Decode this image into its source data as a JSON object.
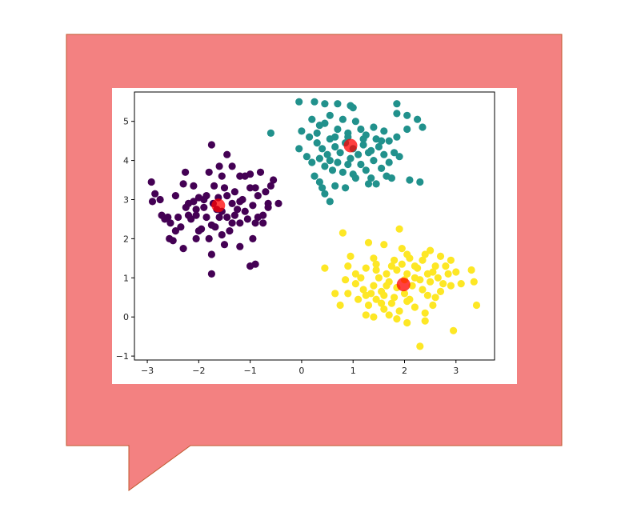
{
  "colors": {
    "bubble_fill": "#f38181",
    "bubble_stroke": "#c0592f",
    "cluster_colors": [
      "#440154",
      "#21918c",
      "#fde725"
    ],
    "centroid": "#ff0000"
  },
  "chart_data": {
    "type": "scatter",
    "title": "",
    "xlabel": "",
    "ylabel": "",
    "xlim": [
      -3.25,
      3.75
    ],
    "ylim": [
      -1.1,
      5.75
    ],
    "xticks": [
      -3,
      -2,
      -1,
      0,
      1,
      2,
      3
    ],
    "yticks": [
      -1,
      0,
      1,
      2,
      3,
      4,
      5
    ],
    "grid": false,
    "legend": "none",
    "series": [
      {
        "color": "#440154",
        "points": [
          [
            -2.92,
            3.45
          ],
          [
            -2.85,
            3.15
          ],
          [
            -2.9,
            2.95
          ],
          [
            -2.75,
            3.0
          ],
          [
            -2.72,
            2.6
          ],
          [
            -2.66,
            2.5
          ],
          [
            -2.55,
            2.4
          ],
          [
            -2.57,
            2.0
          ],
          [
            -2.45,
            3.1
          ],
          [
            -2.4,
            2.55
          ],
          [
            -2.35,
            2.3
          ],
          [
            -2.3,
            3.4
          ],
          [
            -2.26,
            3.7
          ],
          [
            -2.2,
            2.9
          ],
          [
            -2.15,
            2.5
          ],
          [
            -2.1,
            3.35
          ],
          [
            -2.05,
            2.75
          ],
          [
            -2.0,
            3.05
          ],
          [
            -1.95,
            2.25
          ],
          [
            -1.9,
            2.8
          ],
          [
            -1.85,
            2.55
          ],
          [
            -1.8,
            3.7
          ],
          [
            -1.75,
            4.4
          ],
          [
            -1.72,
            2.9
          ],
          [
            -1.68,
            2.3
          ],
          [
            -1.62,
            3.05
          ],
          [
            -1.55,
            2.7
          ],
          [
            -1.5,
            3.3
          ],
          [
            -1.45,
            2.55
          ],
          [
            -1.4,
            2.2
          ],
          [
            -1.35,
            2.9
          ],
          [
            -1.3,
            3.2
          ],
          [
            -1.25,
            2.75
          ],
          [
            -1.2,
            2.4
          ],
          [
            -1.15,
            3.0
          ],
          [
            -1.1,
            3.6
          ],
          [
            -1.05,
            2.5
          ],
          [
            -1.0,
            3.3
          ],
          [
            -0.95,
            2.85
          ],
          [
            -0.9,
            2.4
          ],
          [
            -0.85,
            3.1
          ],
          [
            -0.8,
            3.7
          ],
          [
            -0.75,
            2.6
          ],
          [
            -0.7,
            3.2
          ],
          [
            -0.65,
            2.9
          ],
          [
            -0.6,
            3.35
          ],
          [
            -0.55,
            3.5
          ],
          [
            -0.45,
            2.9
          ],
          [
            -0.9,
            1.35
          ],
          [
            -1.0,
            1.3
          ],
          [
            -1.2,
            1.8
          ],
          [
            -1.5,
            1.85
          ],
          [
            -1.75,
            1.6
          ],
          [
            -1.75,
            1.1
          ],
          [
            -1.45,
            4.15
          ],
          [
            -1.35,
            3.85
          ],
          [
            -1.9,
            3.0
          ],
          [
            -2.0,
            2.2
          ],
          [
            -2.45,
            2.2
          ],
          [
            -2.3,
            1.75
          ],
          [
            -2.5,
            1.95
          ],
          [
            -2.1,
            2.95
          ],
          [
            -1.6,
            2.55
          ],
          [
            -1.55,
            3.6
          ],
          [
            -1.0,
            3.65
          ],
          [
            -0.9,
            3.3
          ],
          [
            -1.2,
            2.95
          ],
          [
            -1.65,
            2.75
          ],
          [
            -2.2,
            2.6
          ],
          [
            -1.85,
            3.1
          ],
          [
            -1.3,
            2.6
          ],
          [
            -0.75,
            2.4
          ],
          [
            -2.6,
            2.55
          ],
          [
            -2.05,
            2.6
          ],
          [
            -1.7,
            3.35
          ],
          [
            -1.1,
            2.7
          ],
          [
            -0.95,
            2.0
          ],
          [
            -0.65,
            2.8
          ],
          [
            -1.8,
            2.0
          ],
          [
            -2.05,
            2.0
          ],
          [
            -1.45,
            3.1
          ],
          [
            -1.2,
            3.6
          ],
          [
            -1.6,
            3.85
          ],
          [
            -2.25,
            2.8
          ],
          [
            -1.35,
            2.4
          ],
          [
            -0.85,
            2.55
          ],
          [
            -1.75,
            2.35
          ],
          [
            -1.55,
            2.1
          ]
        ]
      },
      {
        "color": "#21918c",
        "points": [
          [
            -0.05,
            5.5
          ],
          [
            0.25,
            5.5
          ],
          [
            0.45,
            5.45
          ],
          [
            0.7,
            5.45
          ],
          [
            0.95,
            5.4
          ],
          [
            1.0,
            5.35
          ],
          [
            1.85,
            5.45
          ],
          [
            1.85,
            5.2
          ],
          [
            2.05,
            5.15
          ],
          [
            2.25,
            5.05
          ],
          [
            2.35,
            4.85
          ],
          [
            2.05,
            4.8
          ],
          [
            0.2,
            5.05
          ],
          [
            0.35,
            4.9
          ],
          [
            0.45,
            4.95
          ],
          [
            0.55,
            5.15
          ],
          [
            0.7,
            4.8
          ],
          [
            0.8,
            5.05
          ],
          [
            0.9,
            4.7
          ],
          [
            1.05,
            5.0
          ],
          [
            1.15,
            4.8
          ],
          [
            1.25,
            4.65
          ],
          [
            1.4,
            4.85
          ],
          [
            1.45,
            4.55
          ],
          [
            1.6,
            4.75
          ],
          [
            1.7,
            4.5
          ],
          [
            1.85,
            4.6
          ],
          [
            -0.6,
            4.7
          ],
          [
            0.0,
            4.75
          ],
          [
            0.15,
            4.6
          ],
          [
            0.3,
            4.45
          ],
          [
            0.4,
            4.3
          ],
          [
            0.55,
            4.55
          ],
          [
            0.65,
            4.35
          ],
          [
            0.75,
            4.2
          ],
          [
            0.85,
            4.45
          ],
          [
            1.0,
            4.3
          ],
          [
            1.1,
            4.15
          ],
          [
            1.2,
            4.4
          ],
          [
            1.3,
            4.2
          ],
          [
            1.4,
            4.0
          ],
          [
            1.5,
            4.35
          ],
          [
            1.6,
            4.15
          ],
          [
            1.7,
            3.95
          ],
          [
            1.8,
            4.2
          ],
          [
            1.9,
            4.1
          ],
          [
            -0.05,
            4.3
          ],
          [
            0.1,
            4.1
          ],
          [
            0.2,
            3.95
          ],
          [
            0.35,
            4.05
          ],
          [
            0.45,
            3.85
          ],
          [
            0.55,
            4.0
          ],
          [
            0.6,
            3.75
          ],
          [
            0.7,
            3.95
          ],
          [
            0.8,
            3.7
          ],
          [
            0.9,
            3.9
          ],
          [
            1.0,
            3.65
          ],
          [
            1.15,
            3.9
          ],
          [
            1.25,
            3.75
          ],
          [
            1.35,
            3.55
          ],
          [
            1.45,
            3.4
          ],
          [
            1.55,
            3.8
          ],
          [
            1.65,
            3.6
          ],
          [
            1.75,
            3.55
          ],
          [
            0.35,
            3.45
          ],
          [
            0.4,
            3.3
          ],
          [
            0.45,
            3.15
          ],
          [
            0.55,
            2.95
          ],
          [
            0.65,
            3.35
          ],
          [
            0.85,
            3.3
          ],
          [
            1.05,
            3.55
          ],
          [
            1.3,
            3.4
          ],
          [
            2.1,
            3.5
          ],
          [
            2.3,
            3.45
          ],
          [
            0.25,
            3.6
          ],
          [
            0.9,
            4.6
          ],
          [
            1.2,
            4.55
          ],
          [
            0.5,
            4.15
          ],
          [
            0.3,
            4.7
          ],
          [
            1.55,
            4.5
          ],
          [
            0.65,
            4.6
          ],
          [
            0.95,
            4.05
          ],
          [
            1.35,
            4.25
          ]
        ]
      },
      {
        "color": "#fde725",
        "points": [
          [
            0.8,
            2.15
          ],
          [
            1.9,
            2.25
          ],
          [
            1.3,
            1.9
          ],
          [
            1.6,
            1.85
          ],
          [
            1.95,
            1.75
          ],
          [
            2.5,
            1.7
          ],
          [
            2.7,
            1.55
          ],
          [
            1.4,
            1.5
          ],
          [
            1.8,
            1.45
          ],
          [
            2.1,
            1.5
          ],
          [
            2.35,
            1.45
          ],
          [
            2.6,
            1.3
          ],
          [
            2.9,
            1.45
          ],
          [
            3.0,
            1.15
          ],
          [
            3.3,
            1.2
          ],
          [
            3.35,
            0.9
          ],
          [
            0.45,
            1.25
          ],
          [
            0.9,
            1.3
          ],
          [
            1.05,
            1.1
          ],
          [
            1.25,
            1.25
          ],
          [
            1.45,
            1.2
          ],
          [
            1.65,
            1.1
          ],
          [
            1.85,
            1.2
          ],
          [
            2.05,
            1.1
          ],
          [
            2.25,
            1.25
          ],
          [
            2.45,
            1.1
          ],
          [
            2.65,
            1.0
          ],
          [
            2.85,
            1.1
          ],
          [
            3.1,
            0.85
          ],
          [
            0.85,
            0.95
          ],
          [
            1.05,
            0.85
          ],
          [
            1.2,
            0.7
          ],
          [
            1.4,
            0.8
          ],
          [
            1.55,
            0.65
          ],
          [
            1.7,
            0.9
          ],
          [
            1.85,
            0.75
          ],
          [
            2.15,
            0.8
          ],
          [
            2.35,
            0.7
          ],
          [
            2.5,
            0.9
          ],
          [
            2.7,
            0.65
          ],
          [
            2.9,
            0.8
          ],
          [
            0.9,
            0.6
          ],
          [
            1.1,
            0.45
          ],
          [
            1.3,
            0.3
          ],
          [
            1.45,
            0.45
          ],
          [
            1.6,
            0.2
          ],
          [
            1.75,
            0.35
          ],
          [
            1.9,
            0.15
          ],
          [
            2.05,
            0.4
          ],
          [
            2.2,
            0.25
          ],
          [
            2.4,
            0.1
          ],
          [
            2.55,
            0.3
          ],
          [
            0.75,
            0.3
          ],
          [
            1.25,
            0.05
          ],
          [
            1.4,
            0.0
          ],
          [
            1.85,
            -0.05
          ],
          [
            2.05,
            -0.15
          ],
          [
            2.4,
            -0.1
          ],
          [
            2.95,
            -0.35
          ],
          [
            2.3,
            -0.75
          ],
          [
            3.4,
            0.3
          ],
          [
            0.65,
            0.6
          ],
          [
            1.6,
            0.55
          ],
          [
            2.2,
            1.0
          ],
          [
            1.75,
            1.3
          ],
          [
            2.45,
            0.55
          ],
          [
            1.15,
            1.0
          ],
          [
            2.0,
            0.6
          ],
          [
            1.5,
            1.0
          ],
          [
            2.75,
            0.85
          ],
          [
            1.95,
            1.35
          ],
          [
            1.35,
            0.6
          ],
          [
            2.1,
            0.45
          ],
          [
            2.6,
            0.5
          ],
          [
            1.7,
            0.05
          ],
          [
            2.2,
            1.3
          ],
          [
            0.95,
            1.55
          ],
          [
            2.4,
            1.6
          ],
          [
            1.55,
            0.35
          ],
          [
            2.3,
            0.95
          ],
          [
            1.8,
            0.5
          ],
          [
            2.05,
            1.6
          ],
          [
            1.25,
            0.55
          ],
          [
            2.55,
            1.15
          ],
          [
            1.65,
            0.8
          ],
          [
            2.0,
            0.95
          ],
          [
            1.45,
            1.35
          ],
          [
            2.8,
            1.3
          ]
        ]
      }
    ],
    "centroids": [
      {
        "x": -1.62,
        "y": 2.85
      },
      {
        "x": 0.95,
        "y": 4.38
      },
      {
        "x": 1.98,
        "y": 0.83
      }
    ]
  }
}
